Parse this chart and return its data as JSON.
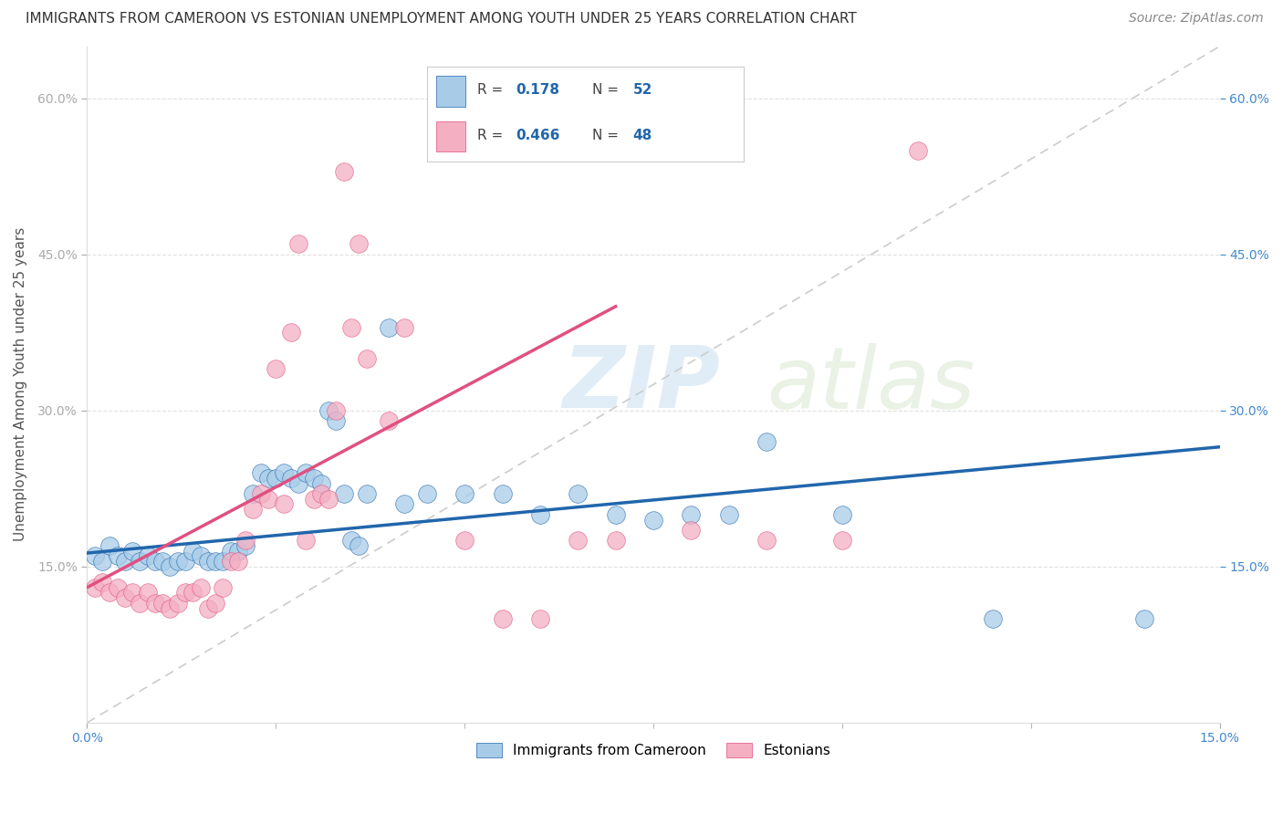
{
  "title": "IMMIGRANTS FROM CAMEROON VS ESTONIAN UNEMPLOYMENT AMONG YOUTH UNDER 25 YEARS CORRELATION CHART",
  "source": "Source: ZipAtlas.com",
  "ylabel": "Unemployment Among Youth under 25 years",
  "legend_label1": "Immigrants from Cameroon",
  "legend_label2": "Estonians",
  "R1": "0.178",
  "N1": "52",
  "R2": "0.466",
  "N2": "48",
  "blue_color": "#a8cce8",
  "pink_color": "#f4afc3",
  "blue_line_color": "#2166ac",
  "pink_line_color": "#e05080",
  "dashed_line_color": "#cccccc",
  "background_color": "#ffffff",
  "grid_color": "#dddddd",
  "xlim": [
    0,
    0.15
  ],
  "ylim": [
    0,
    0.65
  ],
  "y_ticks": [
    0.15,
    0.3,
    0.45,
    0.6
  ],
  "x_ticks": [
    0.0,
    0.025,
    0.05,
    0.075,
    0.1,
    0.125,
    0.15
  ],
  "watermark_zip": "ZIP",
  "watermark_atlas": "atlas",
  "blue_scatter": [
    [
      0.001,
      0.16
    ],
    [
      0.002,
      0.155
    ],
    [
      0.003,
      0.17
    ],
    [
      0.004,
      0.16
    ],
    [
      0.005,
      0.155
    ],
    [
      0.006,
      0.165
    ],
    [
      0.007,
      0.155
    ],
    [
      0.008,
      0.16
    ],
    [
      0.009,
      0.155
    ],
    [
      0.01,
      0.155
    ],
    [
      0.011,
      0.15
    ],
    [
      0.012,
      0.155
    ],
    [
      0.013,
      0.155
    ],
    [
      0.014,
      0.165
    ],
    [
      0.015,
      0.16
    ],
    [
      0.016,
      0.155
    ],
    [
      0.017,
      0.155
    ],
    [
      0.018,
      0.155
    ],
    [
      0.019,
      0.165
    ],
    [
      0.02,
      0.165
    ],
    [
      0.021,
      0.17
    ],
    [
      0.022,
      0.22
    ],
    [
      0.023,
      0.24
    ],
    [
      0.024,
      0.235
    ],
    [
      0.025,
      0.235
    ],
    [
      0.026,
      0.24
    ],
    [
      0.027,
      0.235
    ],
    [
      0.028,
      0.23
    ],
    [
      0.029,
      0.24
    ],
    [
      0.03,
      0.235
    ],
    [
      0.031,
      0.23
    ],
    [
      0.032,
      0.3
    ],
    [
      0.033,
      0.29
    ],
    [
      0.034,
      0.22
    ],
    [
      0.035,
      0.175
    ],
    [
      0.036,
      0.17
    ],
    [
      0.037,
      0.22
    ],
    [
      0.04,
      0.38
    ],
    [
      0.042,
      0.21
    ],
    [
      0.045,
      0.22
    ],
    [
      0.05,
      0.22
    ],
    [
      0.055,
      0.22
    ],
    [
      0.06,
      0.2
    ],
    [
      0.065,
      0.22
    ],
    [
      0.07,
      0.2
    ],
    [
      0.075,
      0.195
    ],
    [
      0.08,
      0.2
    ],
    [
      0.085,
      0.2
    ],
    [
      0.09,
      0.27
    ],
    [
      0.1,
      0.2
    ],
    [
      0.12,
      0.1
    ],
    [
      0.14,
      0.1
    ]
  ],
  "pink_scatter": [
    [
      0.001,
      0.13
    ],
    [
      0.002,
      0.135
    ],
    [
      0.003,
      0.125
    ],
    [
      0.004,
      0.13
    ],
    [
      0.005,
      0.12
    ],
    [
      0.006,
      0.125
    ],
    [
      0.007,
      0.115
    ],
    [
      0.008,
      0.125
    ],
    [
      0.009,
      0.115
    ],
    [
      0.01,
      0.115
    ],
    [
      0.011,
      0.11
    ],
    [
      0.012,
      0.115
    ],
    [
      0.013,
      0.125
    ],
    [
      0.014,
      0.125
    ],
    [
      0.015,
      0.13
    ],
    [
      0.016,
      0.11
    ],
    [
      0.017,
      0.115
    ],
    [
      0.018,
      0.13
    ],
    [
      0.019,
      0.155
    ],
    [
      0.02,
      0.155
    ],
    [
      0.021,
      0.175
    ],
    [
      0.022,
      0.205
    ],
    [
      0.023,
      0.22
    ],
    [
      0.024,
      0.215
    ],
    [
      0.025,
      0.34
    ],
    [
      0.026,
      0.21
    ],
    [
      0.027,
      0.375
    ],
    [
      0.028,
      0.46
    ],
    [
      0.029,
      0.175
    ],
    [
      0.03,
      0.215
    ],
    [
      0.031,
      0.22
    ],
    [
      0.032,
      0.215
    ],
    [
      0.033,
      0.3
    ],
    [
      0.034,
      0.53
    ],
    [
      0.035,
      0.38
    ],
    [
      0.036,
      0.46
    ],
    [
      0.037,
      0.35
    ],
    [
      0.04,
      0.29
    ],
    [
      0.042,
      0.38
    ],
    [
      0.05,
      0.175
    ],
    [
      0.055,
      0.1
    ],
    [
      0.06,
      0.1
    ],
    [
      0.065,
      0.175
    ],
    [
      0.07,
      0.175
    ],
    [
      0.08,
      0.185
    ],
    [
      0.09,
      0.175
    ],
    [
      0.1,
      0.175
    ],
    [
      0.11,
      0.55
    ]
  ],
  "title_fontsize": 11,
  "source_fontsize": 10,
  "axis_label_fontsize": 11,
  "tick_fontsize": 10,
  "legend_fontsize": 11
}
